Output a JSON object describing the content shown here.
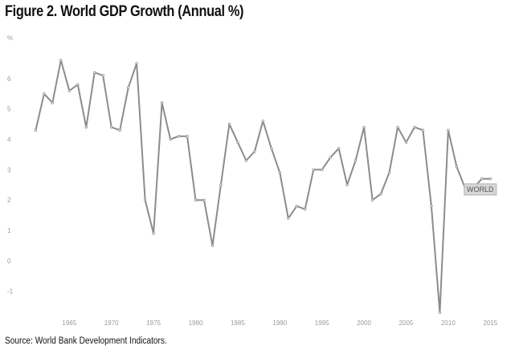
{
  "title": "Figure 2. World GDP Growth (Annual %)",
  "source": "Source: World Bank Development Indicators.",
  "chart_data": {
    "type": "line",
    "title": "Figure 2. World GDP Growth (Annual %)",
    "ylabel": "%",
    "xlabel": "",
    "ylim": [
      -1.8,
      7
    ],
    "xlim": [
      1960.2,
      2016.5
    ],
    "yticks": [
      -1,
      0,
      1,
      2,
      3,
      4,
      5,
      6
    ],
    "xticks": [
      1965,
      1970,
      1975,
      1980,
      1985,
      1990,
      1995,
      2000,
      2005,
      2010,
      2015
    ],
    "grid": false,
    "series": [
      {
        "name": "WORLD",
        "x": [
          1961,
          1962,
          1963,
          1964,
          1965,
          1966,
          1967,
          1968,
          1969,
          1970,
          1971,
          1972,
          1973,
          1974,
          1975,
          1976,
          1977,
          1978,
          1979,
          1980,
          1981,
          1982,
          1983,
          1984,
          1985,
          1986,
          1987,
          1988,
          1989,
          1990,
          1991,
          1992,
          1993,
          1994,
          1995,
          1996,
          1997,
          1998,
          1999,
          2000,
          2001,
          2002,
          2003,
          2004,
          2005,
          2006,
          2007,
          2008,
          2009,
          2010,
          2011,
          2012,
          2013,
          2014,
          2015
        ],
        "values": [
          4.3,
          5.5,
          5.2,
          6.6,
          5.6,
          5.8,
          4.4,
          6.2,
          6.1,
          4.4,
          4.3,
          5.7,
          6.5,
          2.0,
          0.9,
          5.2,
          4.0,
          4.1,
          4.1,
          2.0,
          2.0,
          0.5,
          2.5,
          4.5,
          3.9,
          3.3,
          3.6,
          4.6,
          3.7,
          2.9,
          1.4,
          1.8,
          1.7,
          3.0,
          3.0,
          3.4,
          3.7,
          2.5,
          3.3,
          4.4,
          2.0,
          2.2,
          2.9,
          4.4,
          3.9,
          4.4,
          4.3,
          1.8,
          -1.7,
          4.3,
          3.1,
          2.4,
          2.4,
          2.7,
          2.7
        ]
      }
    ],
    "annotations": [
      {
        "text": "WORLD",
        "x": 2014,
        "y": 2.35
      }
    ]
  }
}
